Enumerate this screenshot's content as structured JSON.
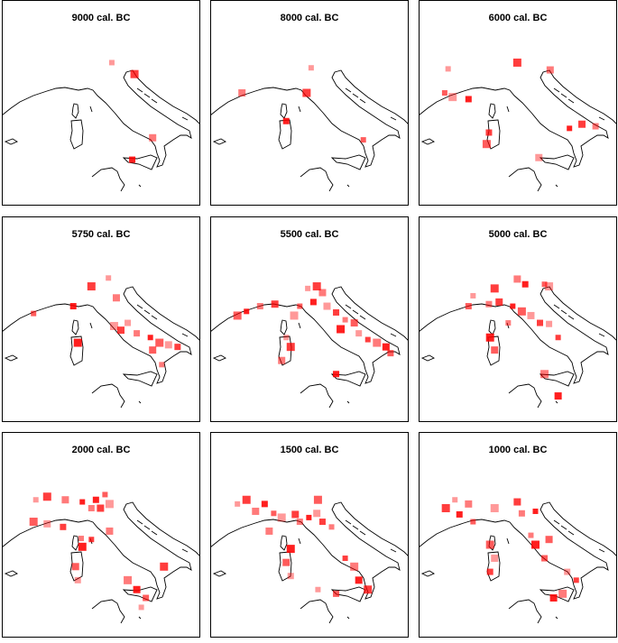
{
  "map": {
    "xlim": [
      1.9,
      19.4
    ],
    "ylim": [
      33.3,
      53
    ]
  },
  "panels": [
    {
      "title": "9000 cal. BC",
      "points": [
        [
          11.6,
          47.0
        ],
        [
          13.6,
          45.9
        ],
        [
          15.2,
          39.8
        ],
        [
          13.4,
          37.7
        ]
      ]
    },
    {
      "title": "8000 cal. BC",
      "points": [
        [
          10.8,
          46.5
        ],
        [
          10.4,
          44.1
        ],
        [
          4.7,
          44.1
        ],
        [
          8.6,
          41.4
        ],
        [
          15.4,
          39.6
        ]
      ]
    },
    {
      "title": "6000 cal. BC",
      "points": [
        [
          4.5,
          46.4
        ],
        [
          10.6,
          47.0
        ],
        [
          13.5,
          46.3
        ],
        [
          6.3,
          43.5
        ],
        [
          4.2,
          44.1
        ],
        [
          4.9,
          43.7
        ],
        [
          16.3,
          41.1
        ],
        [
          17.5,
          40.9
        ],
        [
          15.2,
          40.7
        ],
        [
          7.9,
          39.2
        ],
        [
          12.5,
          37.9
        ],
        [
          8.1,
          40.3
        ]
      ]
    },
    {
      "title": "5750 cal. BC",
      "points": [
        [
          11.3,
          47.1
        ],
        [
          9.8,
          46.3
        ],
        [
          12.0,
          45.2
        ],
        [
          8.2,
          44.4
        ],
        [
          4.7,
          43.7
        ],
        [
          11.8,
          42.5
        ],
        [
          12.4,
          42.1
        ],
        [
          13.8,
          41.8
        ],
        [
          15.0,
          41.4
        ],
        [
          15.8,
          40.9
        ],
        [
          16.6,
          40.7
        ],
        [
          17.4,
          40.5
        ],
        [
          16.0,
          38.8
        ],
        [
          8.6,
          40.9
        ],
        [
          15.2,
          40.2
        ],
        [
          13.0,
          42.8
        ]
      ]
    },
    {
      "title": "5500 cal. BC",
      "points": [
        [
          10.5,
          46.1
        ],
        [
          11.3,
          46.3
        ],
        [
          11.8,
          45.7
        ],
        [
          11.0,
          44.8
        ],
        [
          9.8,
          44.4
        ],
        [
          9.3,
          43.5
        ],
        [
          7.6,
          44.6
        ],
        [
          6.3,
          44.4
        ],
        [
          5.1,
          43.9
        ],
        [
          4.3,
          43.5
        ],
        [
          12.2,
          44.4
        ],
        [
          13.0,
          43.8
        ],
        [
          13.8,
          43.1
        ],
        [
          13.4,
          42.2
        ],
        [
          14.6,
          42.8
        ],
        [
          15.0,
          41.8
        ],
        [
          15.8,
          41.2
        ],
        [
          16.6,
          40.9
        ],
        [
          17.4,
          40.5
        ],
        [
          17.8,
          39.9
        ],
        [
          8.6,
          41.4
        ],
        [
          9.0,
          40.5
        ],
        [
          8.2,
          39.2
        ],
        [
          13.0,
          37.9
        ]
      ]
    },
    {
      "title": "5000 cal. BC",
      "points": [
        [
          6.7,
          45.4
        ],
        [
          8.6,
          46.1
        ],
        [
          10.6,
          47.0
        ],
        [
          11.3,
          46.5
        ],
        [
          13.0,
          46.5
        ],
        [
          13.4,
          46.3
        ],
        [
          9.0,
          44.8
        ],
        [
          8.1,
          44.6
        ],
        [
          10.2,
          44.4
        ],
        [
          11.0,
          43.9
        ],
        [
          11.8,
          43.5
        ],
        [
          12.6,
          42.8
        ],
        [
          9.8,
          42.8
        ],
        [
          8.2,
          41.4
        ],
        [
          8.6,
          40.2
        ],
        [
          13.4,
          42.7
        ],
        [
          14.2,
          41.4
        ],
        [
          13.0,
          37.9
        ],
        [
          14.2,
          35.8
        ],
        [
          6.3,
          44.4
        ]
      ]
    },
    {
      "title": "2000 cal. BC",
      "points": [
        [
          4.9,
          46.5
        ],
        [
          5.9,
          46.8
        ],
        [
          7.5,
          46.5
        ],
        [
          10.2,
          46.5
        ],
        [
          11.0,
          47.0
        ],
        [
          11.4,
          46.1
        ],
        [
          10.6,
          45.7
        ],
        [
          9.8,
          45.7
        ],
        [
          9.0,
          46.3
        ],
        [
          4.7,
          44.4
        ],
        [
          5.9,
          44.2
        ],
        [
          7.3,
          43.9
        ],
        [
          8.9,
          42.8
        ],
        [
          9.0,
          42.0
        ],
        [
          8.4,
          40.1
        ],
        [
          8.6,
          38.8
        ],
        [
          9.8,
          42.7
        ],
        [
          13.0,
          38.8
        ],
        [
          13.8,
          37.9
        ],
        [
          14.6,
          37.1
        ],
        [
          14.2,
          36.2
        ],
        [
          16.2,
          40.1
        ],
        [
          11.4,
          43.5
        ]
      ]
    },
    {
      "title": "1500 cal. BC",
      "points": [
        [
          4.3,
          46.1
        ],
        [
          5.1,
          46.5
        ],
        [
          5.9,
          45.4
        ],
        [
          6.7,
          46.1
        ],
        [
          7.5,
          45.2
        ],
        [
          8.2,
          44.8
        ],
        [
          9.4,
          45.1
        ],
        [
          9.8,
          44.4
        ],
        [
          10.6,
          44.8
        ],
        [
          11.4,
          46.5
        ],
        [
          11.3,
          45.2
        ],
        [
          11.8,
          44.4
        ],
        [
          12.6,
          43.9
        ],
        [
          9.0,
          41.8
        ],
        [
          8.6,
          40.5
        ],
        [
          9.0,
          39.2
        ],
        [
          13.8,
          40.9
        ],
        [
          14.6,
          40.1
        ],
        [
          15.0,
          38.8
        ],
        [
          13.0,
          37.5
        ],
        [
          11.4,
          37.9
        ],
        [
          15.8,
          37.9
        ],
        [
          7.1,
          43.5
        ]
      ]
    },
    {
      "title": "1000 cal. BC",
      "points": [
        [
          5.1,
          46.5
        ],
        [
          4.3,
          45.7
        ],
        [
          6.3,
          46.1
        ],
        [
          5.5,
          45.1
        ],
        [
          6.7,
          44.4
        ],
        [
          8.6,
          45.7
        ],
        [
          10.6,
          46.3
        ],
        [
          11.0,
          45.2
        ],
        [
          12.2,
          45.4
        ],
        [
          8.2,
          42.2
        ],
        [
          8.6,
          40.9
        ],
        [
          8.2,
          39.6
        ],
        [
          11.8,
          43.1
        ],
        [
          12.2,
          42.2
        ],
        [
          13.4,
          42.7
        ],
        [
          15.0,
          39.6
        ],
        [
          15.8,
          38.8
        ],
        [
          14.6,
          37.5
        ],
        [
          13.8,
          37.1
        ],
        [
          13.0,
          40.9
        ]
      ]
    }
  ]
}
